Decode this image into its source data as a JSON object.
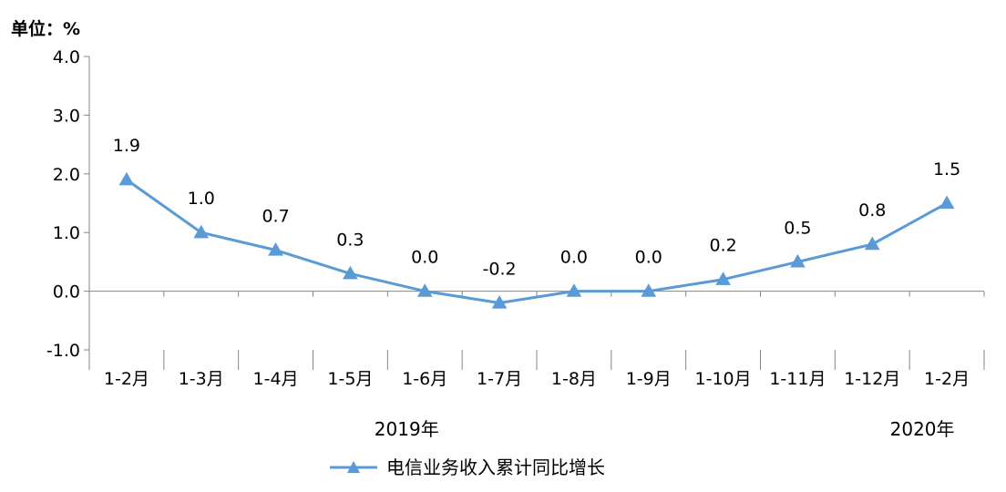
{
  "unit_label": "单位：%",
  "chart_data": {
    "type": "line",
    "title": "",
    "xlabel": "",
    "ylabel": "",
    "categories": [
      "1-2月",
      "1-3月",
      "1-4月",
      "1-5月",
      "1-6月",
      "1-7月",
      "1-8月",
      "1-9月",
      "1-10月",
      "1-11月",
      "1-12月",
      "1-2月"
    ],
    "series": [
      {
        "name": "电信业务收入累计同比增长",
        "values": [
          1.9,
          1.0,
          0.7,
          0.3,
          0.0,
          -0.2,
          0.0,
          0.0,
          0.2,
          0.5,
          0.8,
          1.5
        ],
        "data_labels": [
          "1.9",
          "1.0",
          "0.7",
          "0.3",
          "0.0",
          "-0.2",
          "0.0",
          "0.0",
          "0.2",
          "0.5",
          "0.8",
          "1.5"
        ],
        "color": "#5B9BD5",
        "marker": "triangle"
      }
    ],
    "ylim": [
      -1.0,
      4.0
    ],
    "yticks": [
      "4.0",
      "3.0",
      "2.0",
      "1.0",
      "0.0",
      "-1.0"
    ],
    "year_labels": [
      "2019年",
      "2020年"
    ],
    "legend_position": "bottom",
    "grid": false
  }
}
